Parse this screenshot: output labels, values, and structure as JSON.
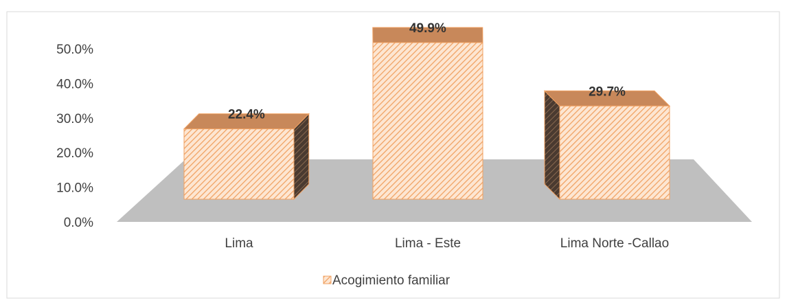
{
  "chart_data": {
    "type": "bar3d",
    "categories": [
      "Lima",
      "Lima - Este",
      "Lima Norte -Callao"
    ],
    "series": [
      {
        "name": "Acogimiento familiar",
        "color": "#f0a060",
        "values": [
          22.4,
          49.9,
          29.7
        ],
        "value_labels": [
          "22.4%",
          "49.9%",
          "29.7%"
        ]
      }
    ],
    "ylim": [
      0,
      50
    ],
    "yticks": [
      {
        "value": 0,
        "label": "0.0%"
      },
      {
        "value": 10,
        "label": "10.0%"
      },
      {
        "value": 20,
        "label": "20.0%"
      },
      {
        "value": 30,
        "label": "30.0%"
      },
      {
        "value": 40,
        "label": "40.0%"
      },
      {
        "value": 50,
        "label": "50.0%"
      }
    ],
    "legend": "bottom"
  }
}
